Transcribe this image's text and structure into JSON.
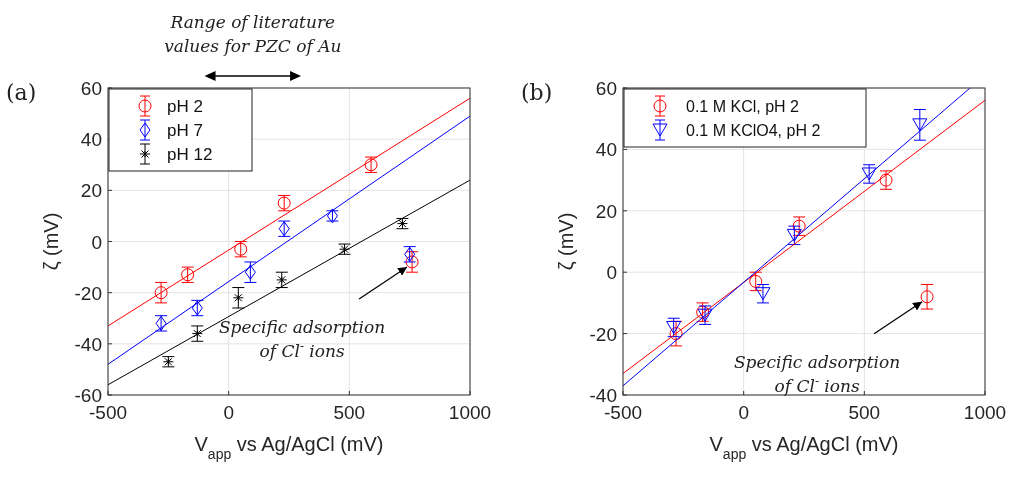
{
  "chart_data": [
    {
      "type": "scatter",
      "title": "(a)",
      "xlabel": "V$_{app}$ vs Ag/AgCl (mV)",
      "ylabel": "ζ (mV)",
      "xlim": [
        -500,
        1000
      ],
      "xticks": [
        -500,
        0,
        500,
        1000
      ],
      "ylim": [
        -60,
        60
      ],
      "yticks": [
        -60,
        -40,
        -20,
        0,
        20,
        40,
        60
      ],
      "grid": true,
      "legend": "top left",
      "annotations": [
        "Range of literature values for PZC of Au",
        {
          "text": "Specific adsorption of Cl$^{-}$ ions",
          "x": 760,
          "y": -8
        }
      ],
      "series": [
        {
          "name": "pH 2",
          "color": "#ff0000",
          "marker": "circle",
          "x": [
            -280,
            -170,
            50,
            230,
            590,
            760
          ],
          "values": [
            -20,
            -13,
            -3,
            15,
            30,
            -8
          ],
          "errors": [
            4,
            3,
            3,
            3,
            3,
            4
          ]
        },
        {
          "name": "pH 7",
          "color": "#0000ff",
          "marker": "diamond",
          "x": [
            -280,
            -130,
            90,
            230,
            430,
            750
          ],
          "values": [
            -32,
            -26,
            -12,
            5,
            10,
            -5
          ],
          "errors": [
            3,
            3,
            4,
            3,
            2,
            3
          ]
        },
        {
          "name": "pH 12",
          "color": "#000000",
          "marker": "cross",
          "x": [
            -250,
            -130,
            40,
            220,
            480,
            720
          ],
          "values": [
            -47,
            -36,
            -22,
            -15,
            -3,
            7
          ],
          "errors": [
            2,
            3,
            4,
            3,
            2,
            2
          ]
        },
        {
          "type": "line",
          "color": "#ff0000",
          "marker": "none",
          "x": [
            -500,
            1000
          ],
          "values": [
            -33,
            56
          ]
        },
        {
          "type": "line",
          "color": "#0000ff",
          "marker": "none",
          "x": [
            -500,
            1000
          ],
          "values": [
            -48,
            49
          ]
        },
        {
          "type": "line",
          "color": "#000000",
          "marker": "none",
          "x": [
            -500,
            1000
          ],
          "values": [
            -56,
            24
          ]
        }
      ]
    },
    {
      "type": "scatter",
      "title": "(b)",
      "xlabel": "V$_{app}$ vs Ag/AgCl (mV)",
      "ylabel": "ζ (mV)",
      "xlim": [
        -500,
        1000
      ],
      "xticks": [
        -500,
        0,
        500,
        1000
      ],
      "ylim": [
        -40,
        60
      ],
      "yticks": [
        -40,
        -20,
        0,
        20,
        40,
        60
      ],
      "grid": true,
      "legend": "top left",
      "annotations": [
        {
          "text": "Specific adsorption of Cl$^{-}$ ions",
          "x": 760,
          "y": -8
        }
      ],
      "series": [
        {
          "name": "0.1 M KCl, pH 2",
          "color": "#ff0000",
          "marker": "circle",
          "x": [
            -280,
            -170,
            50,
            230,
            590,
            760
          ],
          "values": [
            -20,
            -13,
            -3,
            15,
            30,
            -8
          ],
          "errors": [
            4,
            3,
            3,
            3,
            3,
            4
          ]
        },
        {
          "name": "0.1 M KClO4, pH 2",
          "color": "#0000ff",
          "marker": "triangle",
          "x": [
            -290,
            -160,
            80,
            210,
            520,
            730
          ],
          "values": [
            -18,
            -14,
            -7,
            12,
            32,
            48
          ],
          "errors": [
            3,
            3,
            3,
            3,
            3,
            5
          ]
        },
        {
          "type": "line",
          "color": "#ff0000",
          "marker": "none",
          "x": [
            -500,
            1000
          ],
          "values": [
            -33,
            56
          ]
        },
        {
          "type": "line",
          "color": "#0000ff",
          "marker": "none",
          "x": [
            -500,
            938
          ],
          "values": [
            -37,
            60
          ]
        }
      ]
    }
  ]
}
